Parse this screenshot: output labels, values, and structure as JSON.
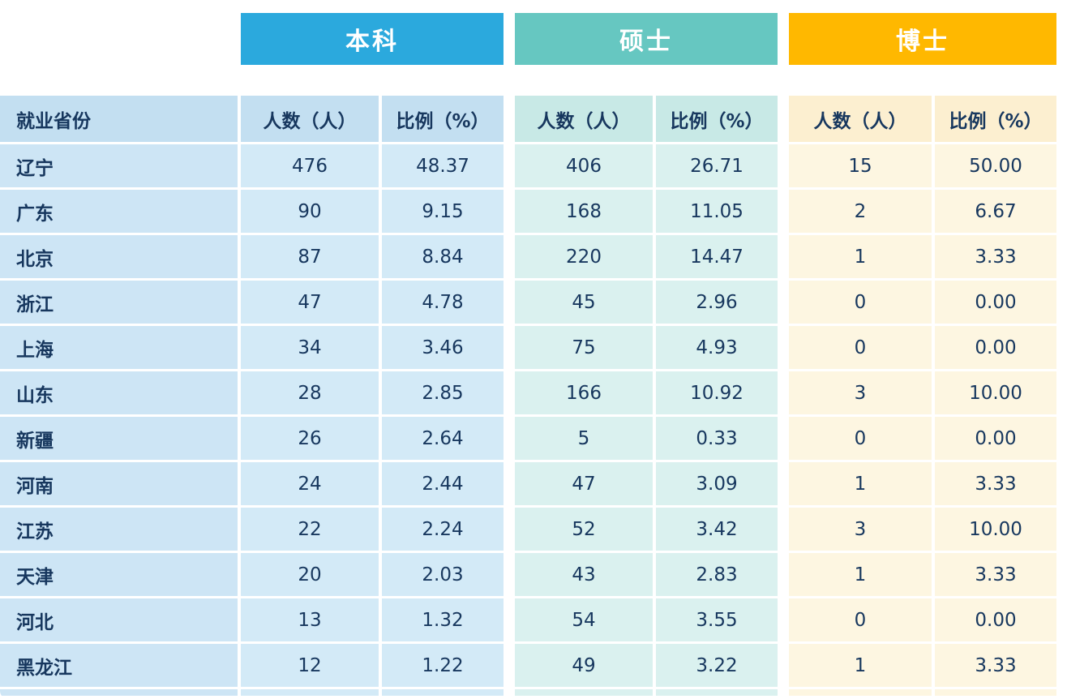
{
  "chart_data": {
    "type": "table",
    "row_header_label": "就业省份",
    "group_headers": [
      "本科",
      "硕士",
      "博士"
    ],
    "sub_headers": [
      "人数（人）",
      "比例（%）"
    ],
    "rows": [
      {
        "province": "辽宁",
        "values": [
          "476",
          "48.37",
          "406",
          "26.71",
          "15",
          "50.00"
        ]
      },
      {
        "province": "广东",
        "values": [
          "90",
          "9.15",
          "168",
          "11.05",
          "2",
          "6.67"
        ]
      },
      {
        "province": "北京",
        "values": [
          "87",
          "8.84",
          "220",
          "14.47",
          "1",
          "3.33"
        ]
      },
      {
        "province": "浙江",
        "values": [
          "47",
          "4.78",
          "45",
          "2.96",
          "0",
          "0.00"
        ]
      },
      {
        "province": "上海",
        "values": [
          "34",
          "3.46",
          "75",
          "4.93",
          "0",
          "0.00"
        ]
      },
      {
        "province": "山东",
        "values": [
          "28",
          "2.85",
          "166",
          "10.92",
          "3",
          "10.00"
        ]
      },
      {
        "province": "新疆",
        "values": [
          "26",
          "2.64",
          "5",
          "0.33",
          "0",
          "0.00"
        ]
      },
      {
        "province": "河南",
        "values": [
          "24",
          "2.44",
          "47",
          "3.09",
          "1",
          "3.33"
        ]
      },
      {
        "province": "江苏",
        "values": [
          "22",
          "2.24",
          "52",
          "3.42",
          "3",
          "10.00"
        ]
      },
      {
        "province": "天津",
        "values": [
          "20",
          "2.03",
          "43",
          "2.83",
          "1",
          "3.33"
        ]
      },
      {
        "province": "河北",
        "values": [
          "13",
          "1.32",
          "54",
          "3.55",
          "0",
          "0.00"
        ]
      },
      {
        "province": "黑龙江",
        "values": [
          "12",
          "1.22",
          "49",
          "3.22",
          "1",
          "3.33"
        ]
      }
    ]
  },
  "colors": {
    "bachelor_banner": "#2BA9DD",
    "master_banner": "#66C7C1",
    "doctor_banner": "#FFB800",
    "province_header_bg": "#C3DFF1",
    "province_cell_bg": "#CDE5F5",
    "bachelor_header_bg": "#C3DFF1",
    "bachelor_cell_bg": "#D3EAF7",
    "master_header_bg": "#C8E9E6",
    "master_cell_bg": "#DAF1EF",
    "doctor_header_bg": "#FCEFD0",
    "doctor_cell_bg": "#FDF6E1",
    "text": "#17375E"
  }
}
